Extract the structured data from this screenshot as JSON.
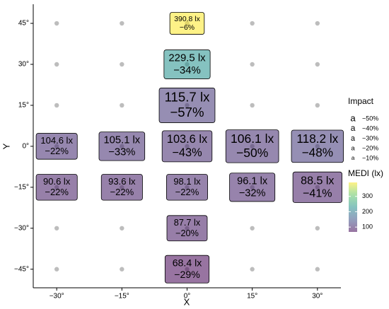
{
  "chart_data": {
    "type": "scatter",
    "x": [
      0,
      0,
      0,
      -30,
      -15,
      0,
      15,
      30,
      -30,
      -15,
      0,
      15,
      30,
      0,
      0
    ],
    "y": [
      45,
      30,
      15,
      0,
      0,
      0,
      0,
      0,
      -15,
      -15,
      -15,
      -15,
      -15,
      -30,
      -45
    ],
    "series": [
      {
        "name": "MEDI (lx)",
        "values": [
          390.8,
          229.5,
          115.7,
          104.6,
          105.1,
          103.6,
          106.1,
          118.2,
          90.6,
          93.6,
          98.1,
          96.1,
          88.5,
          87.7,
          68.4
        ],
        "value_labels": [
          "390.8 lx",
          "229.5 lx",
          "115.7 lx",
          "104.6 lx",
          "105.1 lx",
          "103.6 lx",
          "106.1 lx",
          "118.2 lx",
          "90.6 lx",
          "93.6 lx",
          "98.1 lx",
          "96.1 lx",
          "88.5 lx",
          "87.7 lx",
          "68.4 lx"
        ]
      },
      {
        "name": "Impact",
        "values": [
          -6,
          -34,
          -57,
          -22,
          -33,
          -43,
          -50,
          -48,
          -22,
          -22,
          -22,
          -32,
          -41,
          -20,
          -29
        ],
        "value_labels": [
          "−6%",
          "−34%",
          "−57%",
          "−22%",
          "−33%",
          "−43%",
          "−50%",
          "−48%",
          "−22%",
          "−22%",
          "−22%",
          "−32%",
          "−41%",
          "−20%",
          "−29%"
        ]
      }
    ],
    "xlim": [
      -35.4,
      35.4
    ],
    "ylim": [
      -51.8,
      52
    ],
    "xticks": [
      {
        "value": -30,
        "label": "−30°"
      },
      {
        "value": -15,
        "label": "−15°"
      },
      {
        "value": 0,
        "label": "0°"
      },
      {
        "value": 15,
        "label": "15°"
      },
      {
        "value": 30,
        "label": "30°"
      }
    ],
    "yticks": [
      {
        "value": -45,
        "label": "−45°"
      },
      {
        "value": -30,
        "label": "−30°"
      },
      {
        "value": -15,
        "label": "−15°"
      },
      {
        "value": 0,
        "label": "0°"
      },
      {
        "value": 15,
        "label": "15°"
      },
      {
        "value": 30,
        "label": "30°"
      },
      {
        "value": 45,
        "label": "45°"
      }
    ],
    "xlabel": "X",
    "ylabel": "Y",
    "point_color": "#bdbdbd",
    "palette": [
      "#440154",
      "#3b528b",
      "#21908c",
      "#5dc863",
      "#fde725"
    ],
    "colorlim": [
      68.4,
      390.8
    ],
    "colorticks": [
      100,
      200,
      300
    ],
    "size_glyph": "a",
    "size_ticks": [
      {
        "value": -50,
        "label": "−50%"
      },
      {
        "value": -40,
        "label": "−40%"
      },
      {
        "value": -30,
        "label": "−30%"
      },
      {
        "value": -20,
        "label": "−20%"
      },
      {
        "value": -10,
        "label": "−10%"
      }
    ]
  }
}
